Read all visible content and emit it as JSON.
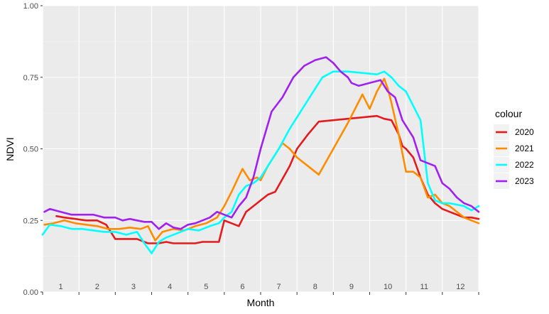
{
  "chart_data": {
    "type": "line",
    "title": "",
    "xlabel": "Month",
    "ylabel": "NDVI",
    "xlim": [
      0,
      12
    ],
    "ylim": [
      0,
      1
    ],
    "y_ticks": [
      {
        "value": 0,
        "label": "0.00"
      },
      {
        "value": 0.25,
        "label": "0.25"
      },
      {
        "value": 0.5,
        "label": "0.50"
      },
      {
        "value": 0.75,
        "label": "0.75"
      },
      {
        "value": 1,
        "label": "1.00"
      }
    ],
    "month_labels": [
      "1",
      "2",
      "3",
      "4",
      "5",
      "6",
      "7",
      "8",
      "9",
      "10",
      "11",
      "12"
    ],
    "grid": true,
    "legend": {
      "title": "colour",
      "position": "right"
    },
    "series": [
      {
        "name": "2020",
        "color": "#E41A1C",
        "x": [
          0.38,
          0.6,
          0.9,
          1.2,
          1.5,
          1.75,
          2.0,
          2.3,
          2.6,
          2.9,
          3.2,
          3.4,
          3.6,
          3.8,
          4.0,
          4.2,
          4.4,
          4.6,
          4.85,
          5.0,
          5.2,
          5.4,
          5.6,
          5.8,
          6.0,
          6.2,
          6.4,
          6.8,
          7.0,
          7.3,
          7.6,
          8.0,
          8.4,
          8.8,
          9.2,
          9.4,
          9.6,
          9.8,
          9.9,
          10.0,
          10.2,
          10.4,
          10.6,
          10.8,
          11.0,
          11.2,
          11.4,
          11.6,
          11.8,
          12.0
        ],
        "y": [
          0.265,
          0.26,
          0.255,
          0.25,
          0.25,
          0.235,
          0.185,
          0.185,
          0.185,
          0.17,
          0.17,
          0.175,
          0.17,
          0.17,
          0.17,
          0.17,
          0.175,
          0.175,
          0.175,
          0.25,
          0.24,
          0.23,
          0.28,
          0.3,
          0.32,
          0.34,
          0.35,
          0.44,
          0.5,
          0.55,
          0.595,
          0.6,
          0.605,
          0.61,
          0.615,
          0.605,
          0.6,
          0.55,
          0.51,
          0.5,
          0.47,
          0.4,
          0.34,
          0.31,
          0.29,
          0.28,
          0.27,
          0.26,
          0.26,
          0.255
        ]
      },
      {
        "name": "2021",
        "color": "#FF8C00",
        "x": [
          0.05,
          0.3,
          0.6,
          0.9,
          1.2,
          1.5,
          1.8,
          2.1,
          2.4,
          2.7,
          2.9,
          3.1,
          3.3,
          3.6,
          3.9,
          4.2,
          4.5,
          4.8,
          5.0,
          5.2,
          5.35,
          5.5,
          5.7,
          5.9,
          6.0,
          6.2,
          6.4,
          6.6,
          6.8,
          7.0,
          7.3,
          7.6,
          8.0,
          8.4,
          8.8,
          9.0,
          9.2,
          9.4,
          9.5,
          9.6,
          9.8,
          10.0,
          10.2,
          10.4,
          10.6,
          10.8,
          11.0,
          11.2,
          11.4,
          11.6,
          11.8,
          12.0
        ],
        "y": [
          0.235,
          0.24,
          0.25,
          0.24,
          0.235,
          0.23,
          0.22,
          0.22,
          0.225,
          0.22,
          0.23,
          0.18,
          0.21,
          0.22,
          0.215,
          0.23,
          0.24,
          0.26,
          0.3,
          0.35,
          0.39,
          0.43,
          0.39,
          0.4,
          0.39,
          0.44,
          0.48,
          0.52,
          0.5,
          0.47,
          0.44,
          0.41,
          0.5,
          0.59,
          0.69,
          0.64,
          0.7,
          0.745,
          0.71,
          0.66,
          0.55,
          0.42,
          0.42,
          0.4,
          0.33,
          0.34,
          0.31,
          0.3,
          0.28,
          0.26,
          0.25,
          0.24
        ]
      },
      {
        "name": "2022",
        "color": "#00FFFF",
        "x": [
          0.0,
          0.2,
          0.5,
          0.8,
          1.1,
          1.4,
          1.7,
          2.0,
          2.3,
          2.6,
          2.8,
          3.0,
          3.2,
          3.4,
          3.6,
          3.8,
          4.0,
          4.3,
          4.6,
          4.85,
          5.0,
          5.2,
          5.4,
          5.6,
          5.8,
          6.0,
          6.2,
          6.5,
          6.8,
          7.1,
          7.4,
          7.7,
          8.0,
          8.4,
          8.8,
          9.2,
          9.4,
          9.6,
          9.8,
          10.0,
          10.2,
          10.4,
          10.6,
          10.8,
          11.0,
          11.2,
          11.4,
          11.6,
          11.8,
          12.0
        ],
        "y": [
          0.2,
          0.235,
          0.23,
          0.22,
          0.22,
          0.215,
          0.21,
          0.21,
          0.2,
          0.21,
          0.17,
          0.135,
          0.175,
          0.19,
          0.2,
          0.21,
          0.22,
          0.215,
          0.23,
          0.24,
          0.26,
          0.28,
          0.34,
          0.37,
          0.38,
          0.4,
          0.44,
          0.5,
          0.57,
          0.63,
          0.69,
          0.75,
          0.77,
          0.77,
          0.765,
          0.76,
          0.77,
          0.75,
          0.72,
          0.7,
          0.65,
          0.6,
          0.38,
          0.32,
          0.31,
          0.31,
          0.305,
          0.3,
          0.285,
          0.3
        ]
      },
      {
        "name": "2023",
        "color": "#A020F0",
        "x": [
          0.05,
          0.2,
          0.5,
          0.8,
          1.1,
          1.4,
          1.7,
          2.0,
          2.2,
          2.4,
          2.6,
          2.8,
          3.0,
          3.2,
          3.4,
          3.6,
          3.8,
          4.0,
          4.2,
          4.4,
          4.6,
          4.8,
          5.0,
          5.2,
          5.4,
          5.6,
          5.8,
          6.0,
          6.3,
          6.6,
          6.9,
          7.2,
          7.5,
          7.8,
          8.0,
          8.2,
          8.4,
          8.5,
          8.7,
          9.0,
          9.3,
          9.5,
          9.7,
          9.9,
          10.0,
          10.2,
          10.4,
          10.6,
          10.8,
          11.0,
          11.2,
          11.4,
          11.6,
          11.8,
          12.0
        ],
        "y": [
          0.28,
          0.29,
          0.28,
          0.27,
          0.27,
          0.27,
          0.26,
          0.26,
          0.25,
          0.255,
          0.25,
          0.245,
          0.245,
          0.22,
          0.24,
          0.225,
          0.22,
          0.235,
          0.24,
          0.25,
          0.26,
          0.28,
          0.27,
          0.26,
          0.3,
          0.33,
          0.4,
          0.5,
          0.63,
          0.68,
          0.75,
          0.79,
          0.81,
          0.82,
          0.8,
          0.77,
          0.75,
          0.73,
          0.72,
          0.73,
          0.74,
          0.7,
          0.68,
          0.6,
          0.58,
          0.54,
          0.46,
          0.45,
          0.44,
          0.38,
          0.36,
          0.33,
          0.31,
          0.3,
          0.28
        ]
      }
    ]
  }
}
